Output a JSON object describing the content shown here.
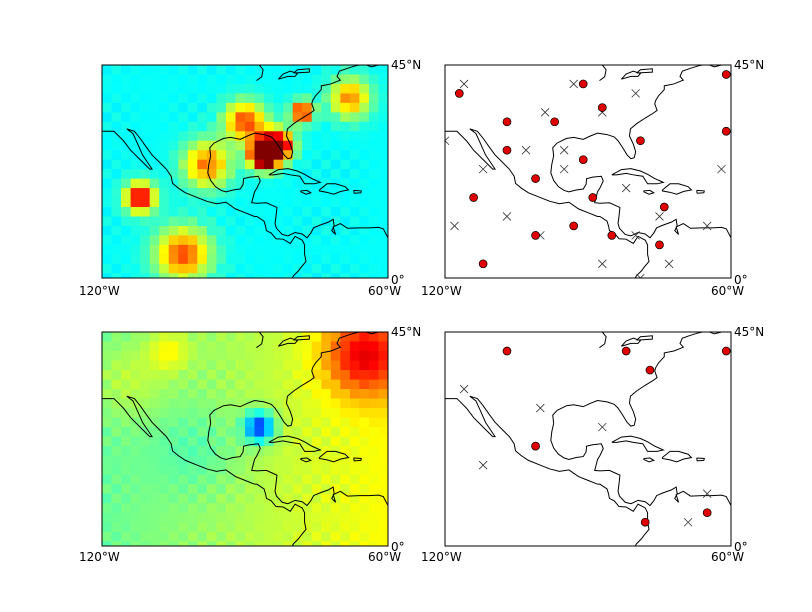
{
  "figure": {
    "panels": [
      {
        "id": "p1",
        "kind": "heatmap",
        "lon_range": [
          -120,
          -60
        ],
        "lat_range": [
          0,
          45
        ],
        "labels": {
          "lon_left": "120°W",
          "lon_right": "60°W",
          "lat_top": "45°N",
          "lat_bottom": "0°"
        },
        "colormap": "jet",
        "anomalies": [
          {
            "lon": -86,
            "lat": 26,
            "value": 1.0,
            "spread": 2.0
          },
          {
            "lon": -84,
            "lat": 28,
            "value": 0.55,
            "spread": 2.5
          },
          {
            "lon": -78,
            "lat": 35,
            "value": 0.62,
            "spread": 1.6
          },
          {
            "lon": -112,
            "lat": 17,
            "value": 0.63,
            "spread": 2.2
          },
          {
            "lon": -82,
            "lat": 28,
            "value": 0.28,
            "spread": 1.8
          },
          {
            "lon": -90,
            "lat": 33,
            "value": 0.48,
            "spread": 3.0
          },
          {
            "lon": -103,
            "lat": 5,
            "value": 0.47,
            "spread": 4.0
          },
          {
            "lon": -98,
            "lat": 24,
            "value": 0.42,
            "spread": 3.5
          },
          {
            "lon": -68,
            "lat": 38,
            "value": 0.4,
            "spread": 3.0
          }
        ],
        "base_value": 0.38
      },
      {
        "id": "p2",
        "kind": "stations",
        "lon_range": [
          -120,
          -60
        ],
        "lat_range": [
          0,
          45
        ],
        "labels": {
          "lon_left": "120°W",
          "lon_right": "60°W",
          "lat_top": "45°N",
          "lat_bottom": "0°"
        },
        "dots": [
          [
            -117,
            39
          ],
          [
            -107,
            33
          ],
          [
            -107,
            27
          ],
          [
            -101,
            21
          ],
          [
            -114,
            17
          ],
          [
            -101,
            9
          ],
          [
            -112,
            3
          ],
          [
            -97,
            33
          ],
          [
            -91,
            41
          ],
          [
            -87,
            36
          ],
          [
            -91,
            25
          ],
          [
            -89,
            17
          ],
          [
            -93,
            11
          ],
          [
            -85,
            9
          ],
          [
            -79,
            29
          ],
          [
            -74,
            15
          ],
          [
            -75,
            7
          ],
          [
            -61,
            43
          ],
          [
            -61,
            31
          ]
        ],
        "crosses": [
          [
            -116,
            41
          ],
          [
            -93,
            41
          ],
          [
            -80,
            39
          ],
          [
            -99,
            35
          ],
          [
            -87,
            35
          ],
          [
            -120,
            29
          ],
          [
            -103,
            27
          ],
          [
            -95,
            27
          ],
          [
            -112,
            23
          ],
          [
            -95,
            23
          ],
          [
            -82,
            19
          ],
          [
            -107,
            13
          ],
          [
            -118,
            11
          ],
          [
            -100,
            9
          ],
          [
            -80,
            9
          ],
          [
            -75,
            13
          ],
          [
            -73,
            3
          ],
          [
            -62,
            23
          ],
          [
            -65,
            11
          ],
          [
            -87,
            3
          ],
          [
            -79,
            0
          ]
        ]
      },
      {
        "id": "p3",
        "kind": "heatmap",
        "lon_range": [
          -120,
          -60
        ],
        "lat_range": [
          0,
          45
        ],
        "labels": {
          "lon_left": "120°W",
          "lon_right": "60°W",
          "lat_top": "45°N",
          "lat_bottom": "0°"
        },
        "colormap": "jet",
        "anomalies": [
          {
            "lon": -87,
            "lat": 25,
            "value": -0.42,
            "spread": 2.2
          },
          {
            "lon": -65,
            "lat": 40,
            "value": 0.32,
            "spread": 6.0
          },
          {
            "lon": -106,
            "lat": 41,
            "value": 0.12,
            "spread": 3.0
          },
          {
            "lon": -115,
            "lat": 35,
            "value": 0.08,
            "spread": 6.0
          },
          {
            "lon": -100,
            "lat": 20,
            "value": -0.07,
            "spread": 7.0
          }
        ],
        "base_value": 0.55,
        "gradient": {
          "lat_coef": 0.0,
          "lon_coef": 0.0025
        }
      },
      {
        "id": "p4",
        "kind": "stations",
        "lon_range": [
          -120,
          -60
        ],
        "lat_range": [
          0,
          45
        ],
        "labels": {
          "lon_left": "120°W",
          "lon_right": "60°W",
          "lat_top": "45°N",
          "lat_bottom": "0°"
        },
        "dots": [
          [
            -107,
            41
          ],
          [
            -101,
            21
          ],
          [
            -82,
            41
          ],
          [
            -77,
            37
          ],
          [
            -61,
            41
          ],
          [
            -78,
            5
          ],
          [
            -65,
            7
          ]
        ],
        "crosses": [
          [
            -116,
            33
          ],
          [
            -100,
            29
          ],
          [
            -87,
            25
          ],
          [
            -112,
            17
          ],
          [
            -65,
            11
          ],
          [
            -69,
            5
          ]
        ]
      }
    ]
  }
}
